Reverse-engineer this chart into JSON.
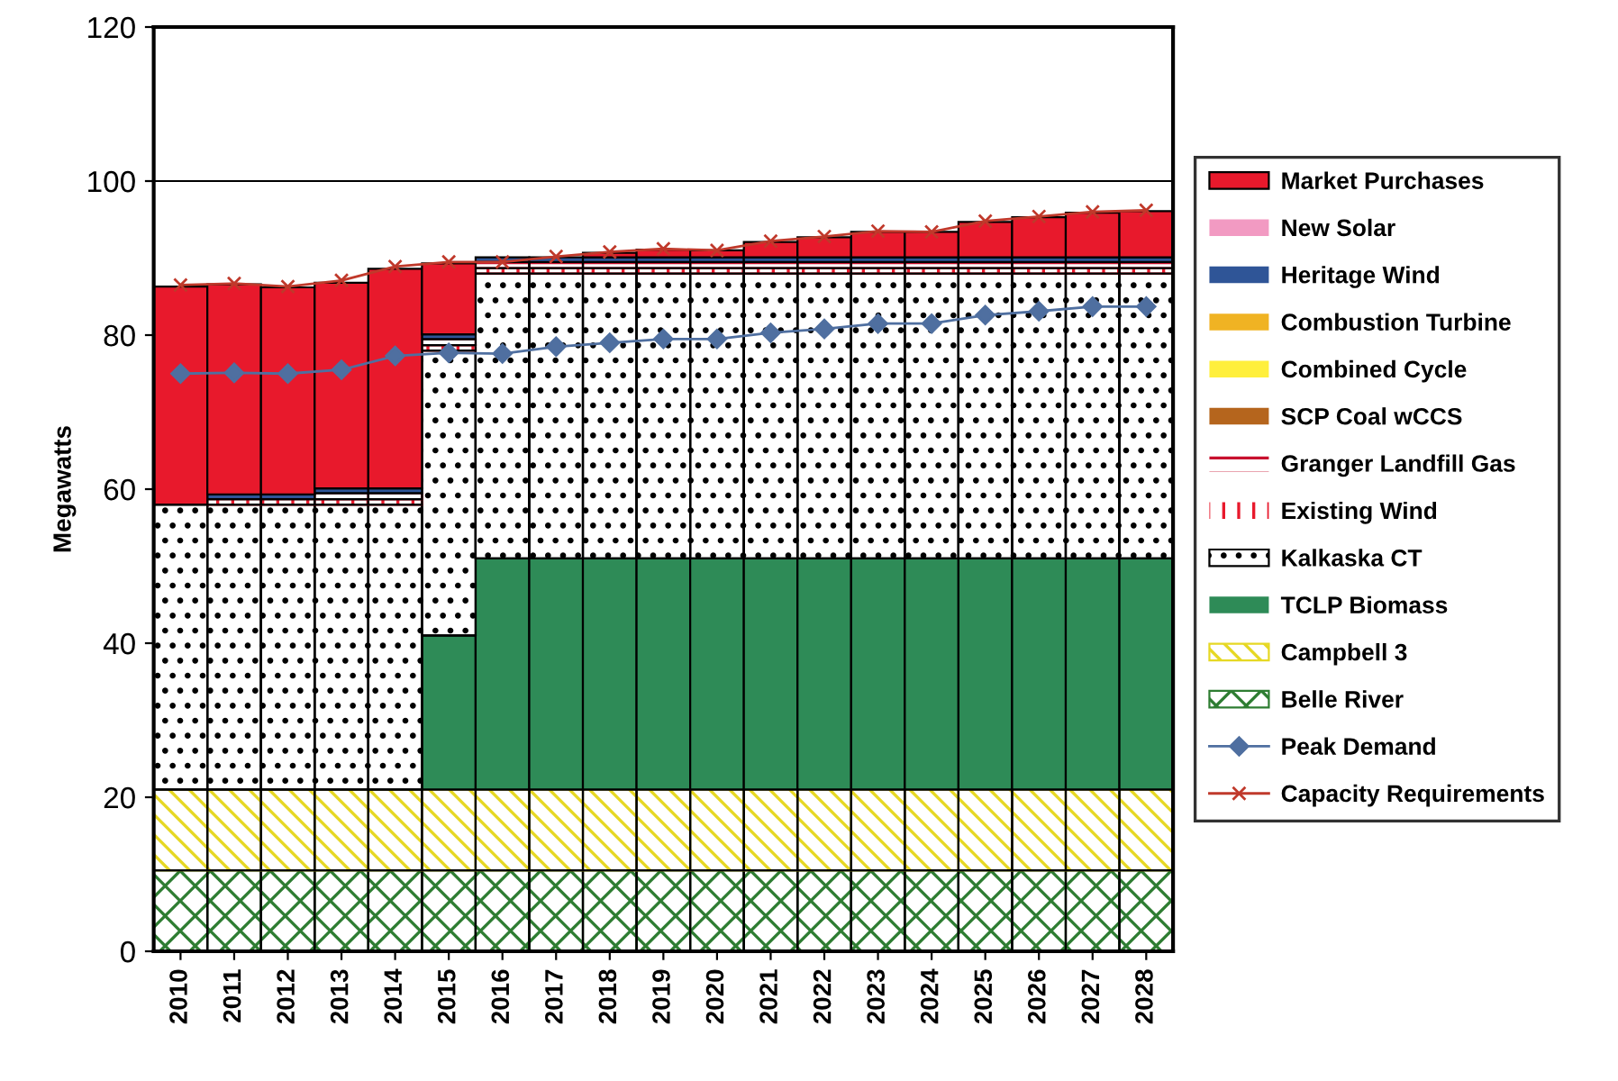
{
  "chart_data": {
    "type": "bar",
    "stacked": true,
    "ylabel": "Megawatts",
    "categories": [
      "2010",
      "2011",
      "2012",
      "2013",
      "2014",
      "2015",
      "2016",
      "2017",
      "2018",
      "2019",
      "2020",
      "2021",
      "2022",
      "2023",
      "2024",
      "2025",
      "2026",
      "2027",
      "2028"
    ],
    "ylim": [
      0,
      120
    ],
    "yticks": [
      0,
      20,
      40,
      60,
      80,
      100,
      120
    ],
    "grid": false,
    "legend": "right",
    "ref_lines": [
      {
        "axis": "y",
        "value": 100,
        "color": "#000000"
      }
    ],
    "series": [
      {
        "name": "Belle River",
        "color": "#2e7d32",
        "values": [
          10.5,
          10.5,
          10.5,
          10.5,
          10.5,
          10.5,
          10.5,
          10.5,
          10.5,
          10.5,
          10.5,
          10.5,
          10.5,
          10.5,
          10.5,
          10.5,
          10.5,
          10.5,
          10.5
        ]
      },
      {
        "name": "Campbell 3",
        "color": "#e6d824",
        "values": [
          10.5,
          10.5,
          10.5,
          10.5,
          10.5,
          10.5,
          10.5,
          10.5,
          10.5,
          10.5,
          10.5,
          10.5,
          10.5,
          10.5,
          10.5,
          10.5,
          10.5,
          10.5,
          10.5
        ]
      },
      {
        "name": "TCLP Biomass",
        "color": "#2e8b57",
        "values": [
          0,
          0,
          0,
          0,
          0,
          20,
          30,
          30,
          30,
          30,
          30,
          30,
          30,
          30,
          30,
          30,
          30,
          30,
          30
        ]
      },
      {
        "name": "Kalkaska CT",
        "color": "#000000",
        "values": [
          37,
          37,
          37,
          37,
          37,
          37,
          37,
          37,
          37,
          37,
          37,
          37,
          37,
          37,
          37,
          37,
          37,
          37,
          37
        ]
      },
      {
        "name": "Existing Wind",
        "color": "#e8192c",
        "values": [
          0,
          0.7,
          0.7,
          0.7,
          0.7,
          0.7,
          0.7,
          0.7,
          0.7,
          0.7,
          0.7,
          0.7,
          0.7,
          0.7,
          0.7,
          0.7,
          0.7,
          0.7,
          0.7
        ]
      },
      {
        "name": "Granger Landfill Gas",
        "color": "#c8102e",
        "values": [
          0,
          0,
          0,
          0.8,
          0.8,
          0.8,
          0.8,
          0.8,
          0.8,
          0.8,
          0.8,
          0.8,
          0.8,
          0.8,
          0.8,
          0.8,
          0.8,
          0.8,
          0.8
        ]
      },
      {
        "name": "SCP Coal wCCS",
        "color": "#b5651d",
        "values": [
          0,
          0,
          0,
          0,
          0,
          0,
          0,
          0,
          0,
          0,
          0,
          0,
          0,
          0,
          0,
          0,
          0,
          0,
          0
        ]
      },
      {
        "name": "Combined Cycle",
        "color": "#ffef3c",
        "values": [
          0,
          0,
          0,
          0,
          0,
          0,
          0,
          0,
          0,
          0,
          0,
          0,
          0,
          0,
          0,
          0,
          0,
          0,
          0
        ]
      },
      {
        "name": "Combustion Turbine",
        "color": "#f0b323",
        "values": [
          0,
          0,
          0,
          0,
          0,
          0,
          0,
          0,
          0,
          0,
          0,
          0,
          0,
          0,
          0,
          0,
          0,
          0,
          0
        ]
      },
      {
        "name": "Heritage Wind",
        "color": "#2f5597",
        "values": [
          0,
          0.6,
          0.6,
          0.6,
          0.6,
          0.6,
          0.6,
          0.6,
          0.6,
          0.6,
          0.6,
          0.6,
          0.6,
          0.6,
          0.6,
          0.6,
          0.6,
          0.6,
          0.6
        ]
      },
      {
        "name": "New Solar",
        "color": "#f29ac2",
        "values": [
          0,
          0,
          0,
          0,
          0,
          0,
          0,
          0,
          0,
          0,
          0,
          0,
          0,
          0,
          0,
          0,
          0,
          0,
          0
        ]
      },
      {
        "name": "Market Purchases",
        "color": "#e8192c",
        "values": [
          28.3,
          27.3,
          26.9,
          26.7,
          28.5,
          9.2,
          0,
          0,
          0.6,
          1.0,
          0.9,
          2.0,
          2.6,
          3.3,
          3.3,
          4.6,
          5.2,
          5.8,
          6.0
        ]
      },
      {
        "name": "Peak Demand",
        "type": "line",
        "color": "#4f6fa0",
        "marker": "diamond",
        "values": [
          75,
          75.1,
          75,
          75.5,
          77.3,
          77.7,
          77.6,
          78.5,
          79.0,
          79.5,
          79.5,
          80.3,
          80.8,
          81.5,
          81.5,
          82.6,
          83.1,
          83.7,
          83.7
        ]
      },
      {
        "name": "Capacity Requirements",
        "type": "line",
        "color": "#c0392b",
        "marker": "cross",
        "values": [
          86.5,
          86.7,
          86.3,
          87.1,
          88.9,
          89.5,
          89.5,
          90.2,
          90.8,
          91.2,
          91.0,
          92.2,
          92.8,
          93.5,
          93.4,
          94.8,
          95.4,
          96.0,
          96.2
        ]
      }
    ]
  }
}
